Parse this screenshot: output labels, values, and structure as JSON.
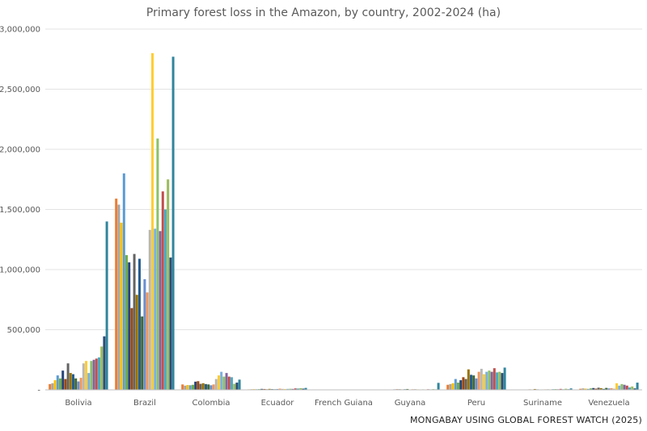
{
  "chart_data": {
    "type": "bar",
    "title": "Primary forest loss in the Amazon, by country, 2002-2024 (ha)",
    "xlabel": "",
    "ylabel": "",
    "ylim": [
      0,
      3000000
    ],
    "yticks": [
      0,
      500000,
      1000000,
      1500000,
      2000000,
      2500000,
      3000000
    ],
    "ytick_labels": [
      "-",
      "500,000",
      "1,000,000",
      "1,500,000",
      "2,000,000",
      "2,500,000",
      "3,000,000"
    ],
    "grid": true,
    "legend": "none",
    "categories": [
      "Bolivia",
      "Brazil",
      "Colombia",
      "Ecuador",
      "French Guiana",
      "Guyana",
      "Peru",
      "Suriname",
      "Venezuela"
    ],
    "series_colors": [
      "#ED7D31",
      "#A5A5A5",
      "#FFC000",
      "#5B9BD5",
      "#70AD47",
      "#264478",
      "#9E480E",
      "#636363",
      "#997300",
      "#255E91",
      "#43682B",
      "#698ED0",
      "#F1975A",
      "#B7B7B7",
      "#FFCD33",
      "#7CAFDD",
      "#8CC168",
      "#8064A2",
      "#C0504D",
      "#4BACC6",
      "#9BBB59",
      "#2C4D75",
      "#31859C"
    ],
    "series_values": [
      [
        48000,
        1590000,
        45000,
        4000,
        1000,
        1000,
        42000,
        1500,
        9000
      ],
      [
        55000,
        1540000,
        35000,
        5000,
        1500,
        2000,
        48000,
        2000,
        12000
      ],
      [
        80000,
        1390000,
        40000,
        6000,
        1500,
        2000,
        55000,
        2000,
        10000
      ],
      [
        120000,
        1800000,
        38000,
        5000,
        1000,
        2000,
        90000,
        3000,
        8000
      ],
      [
        95000,
        1120000,
        42000,
        6000,
        1500,
        3000,
        60000,
        2500,
        12000
      ],
      [
        160000,
        1060000,
        68000,
        8000,
        2000,
        4000,
        80000,
        3000,
        15000
      ],
      [
        90000,
        680000,
        72000,
        7000,
        2000,
        5000,
        105000,
        4000,
        10000
      ],
      [
        220000,
        1130000,
        50000,
        5000,
        1500,
        5000,
        90000,
        3500,
        18000
      ],
      [
        140000,
        790000,
        55000,
        8000,
        1500,
        4000,
        170000,
        7000,
        14000
      ],
      [
        130000,
        1090000,
        48000,
        6000,
        1500,
        5000,
        125000,
        4000,
        8000
      ],
      [
        95000,
        610000,
        45000,
        5000,
        1000,
        7000,
        120000,
        3000,
        16000
      ],
      [
        70000,
        920000,
        38000,
        7000,
        1500,
        3000,
        95000,
        3500,
        12000
      ],
      [
        100000,
        810000,
        45000,
        10000,
        2000,
        5000,
        150000,
        4000,
        14000
      ],
      [
        220000,
        1330000,
        90000,
        8000,
        1500,
        6000,
        175000,
        5000,
        10000
      ],
      [
        240000,
        2800000,
        120000,
        7000,
        1500,
        4000,
        130000,
        4000,
        55000
      ],
      [
        140000,
        1340000,
        150000,
        8000,
        1500,
        3000,
        150000,
        6000,
        35000
      ],
      [
        240000,
        2090000,
        110000,
        9000,
        1500,
        4000,
        160000,
        6500,
        48000
      ],
      [
        250000,
        1320000,
        140000,
        8000,
        2000,
        3000,
        150000,
        5000,
        42000
      ],
      [
        260000,
        1650000,
        110000,
        12000,
        2000,
        5000,
        180000,
        8000,
        35000
      ],
      [
        270000,
        1500000,
        105000,
        11000,
        1500,
        4000,
        145000,
        5000,
        20000
      ],
      [
        360000,
        1750000,
        50000,
        14000,
        2000,
        6000,
        150000,
        9000,
        28000
      ],
      [
        445000,
        1100000,
        60000,
        10000,
        1500,
        4000,
        140000,
        5000,
        12000
      ],
      [
        1400000,
        2770000,
        85000,
        16000,
        3000,
        58000,
        185000,
        12000,
        60000
      ]
    ]
  },
  "credit": "MONGABAY USING GLOBAL FOREST WATCH (2025)"
}
